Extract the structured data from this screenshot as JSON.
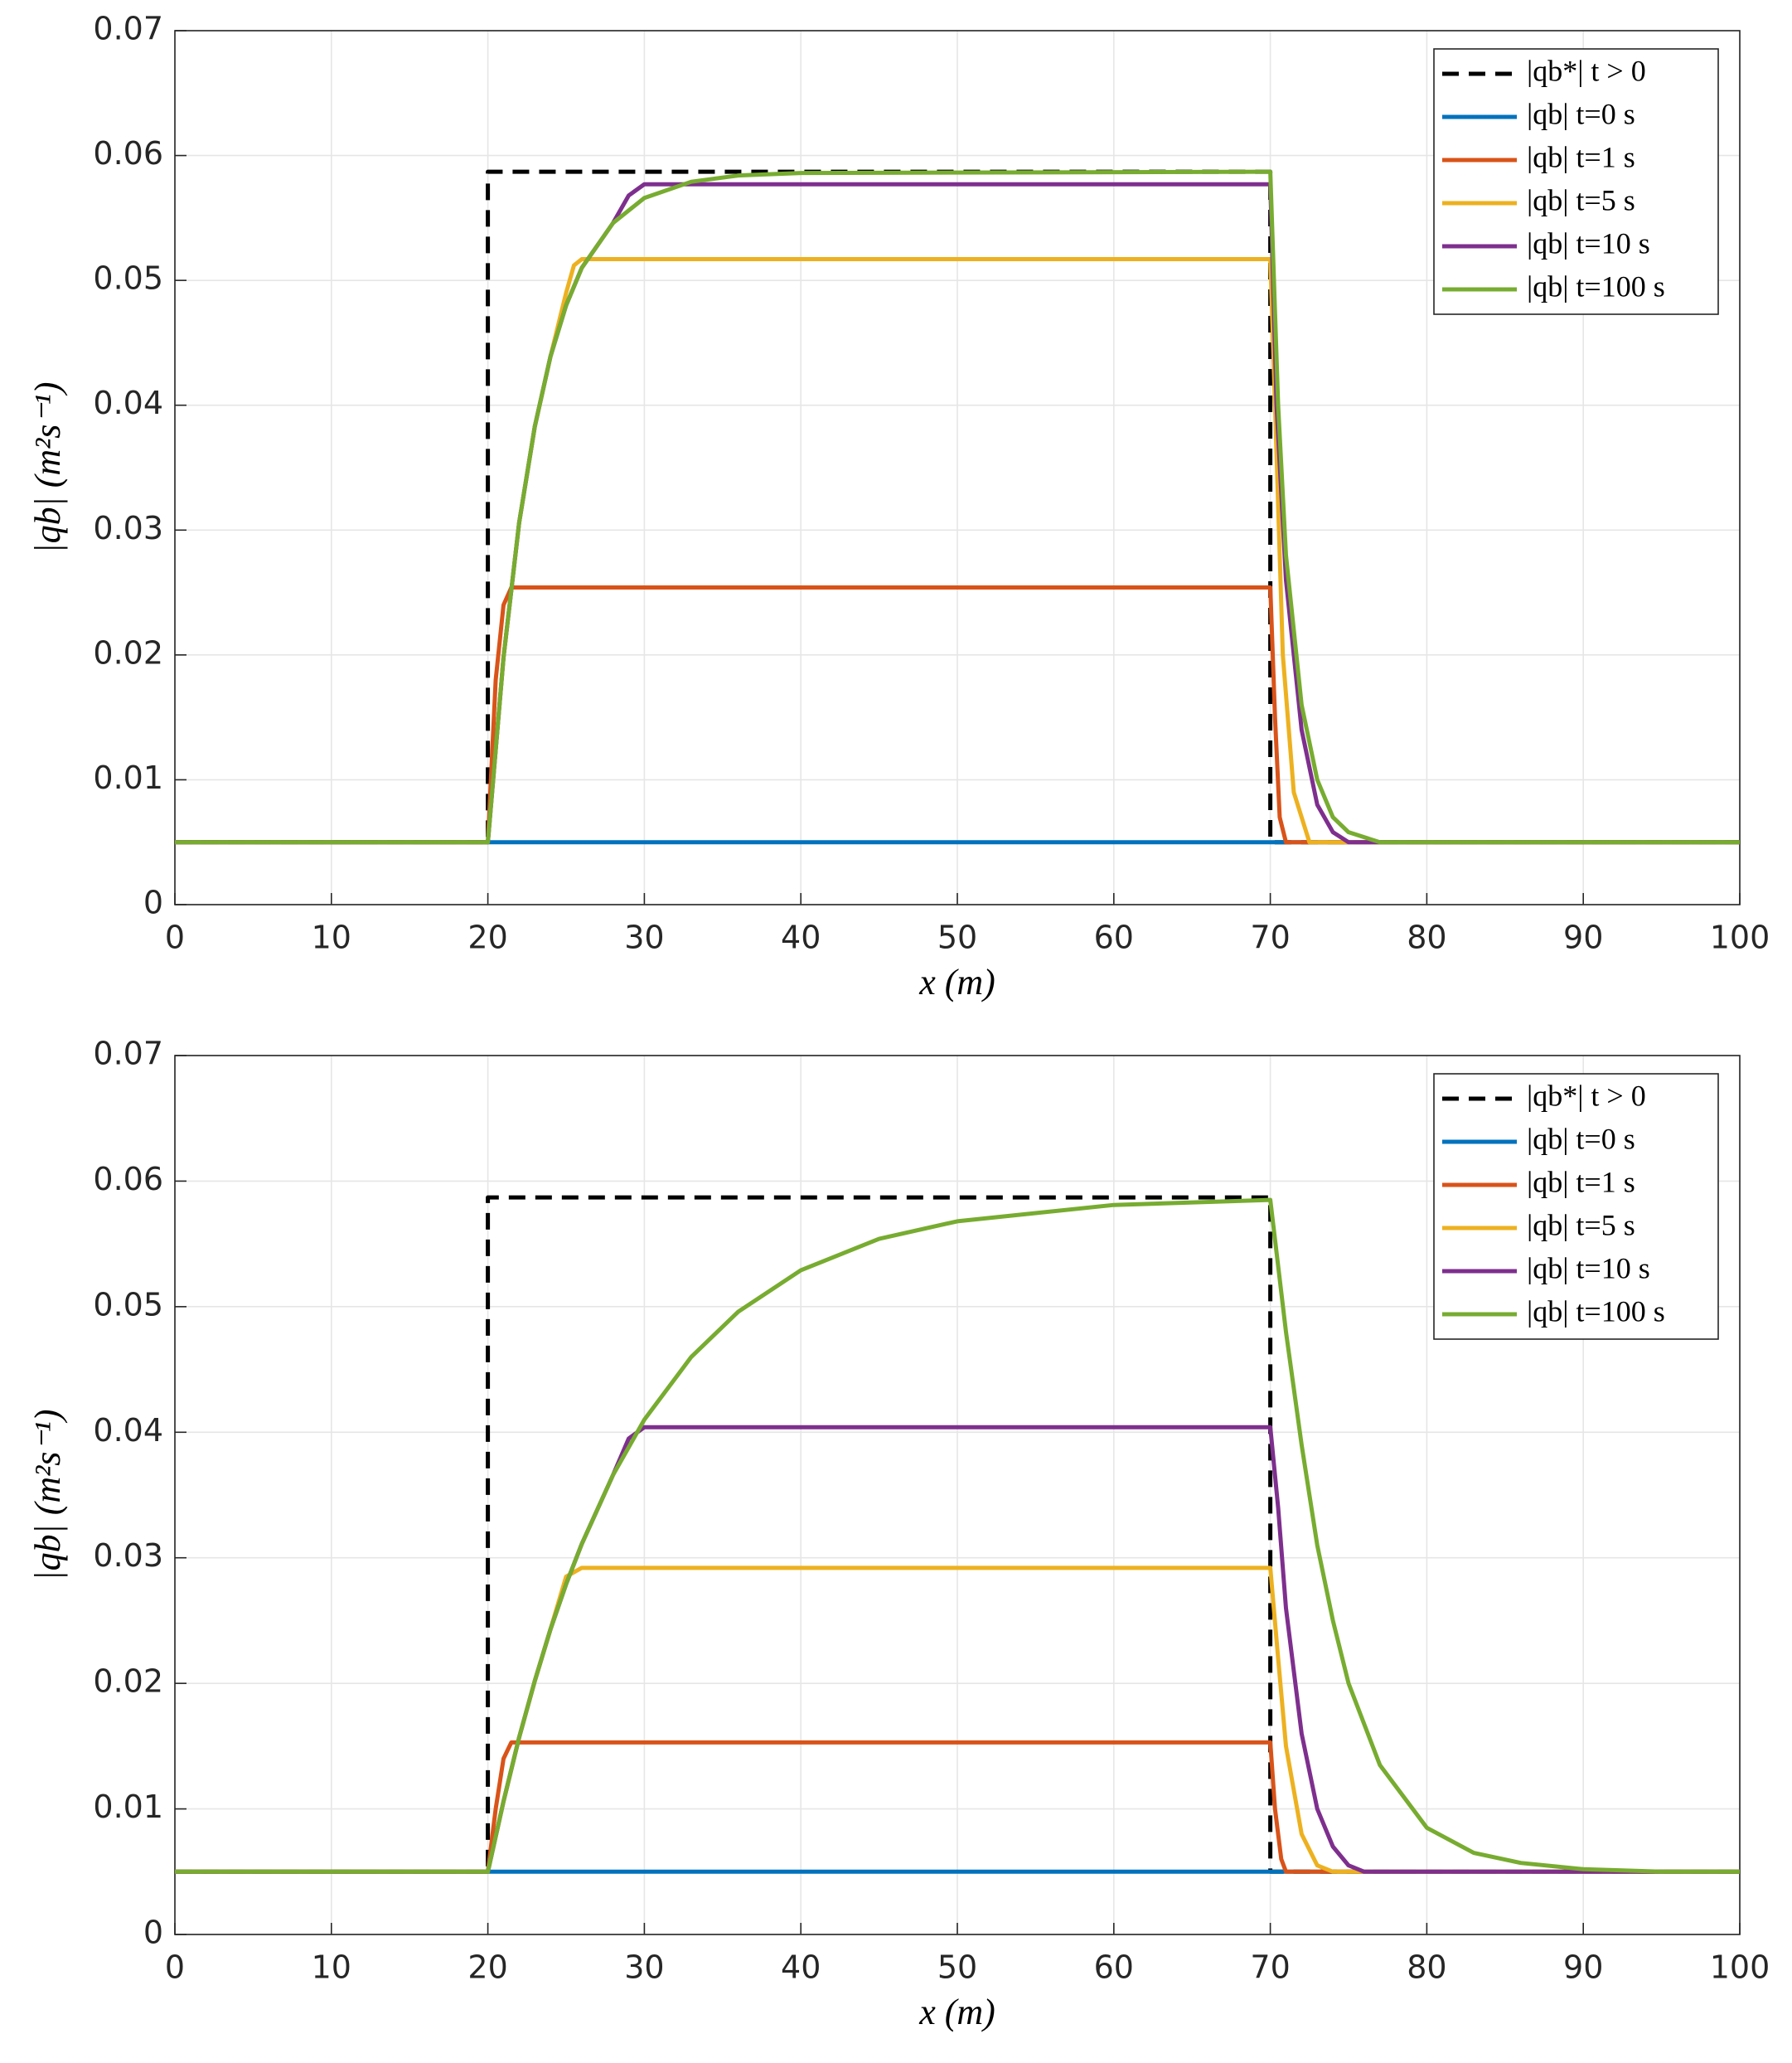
{
  "chart_data": [
    {
      "type": "line",
      "xlabel": "x (m)",
      "ylabel": "|qb| (m²s⁻¹)",
      "xlim": [
        0,
        100
      ],
      "xticks": [
        0,
        10,
        20,
        30,
        40,
        50,
        60,
        70,
        80,
        90,
        100
      ],
      "ylim": [
        0,
        0.07
      ],
      "yticks": [
        0,
        0.01,
        0.02,
        0.03,
        0.04,
        0.05,
        0.06,
        0.07
      ],
      "grid": true,
      "legend": "upper right",
      "series": [
        {
          "name": "|qb*| t > 0",
          "color": "#000000",
          "line_style": "dashed",
          "x": [
            0,
            20,
            20,
            70,
            70,
            100
          ],
          "values": [
            0.005,
            0.005,
            0.0587,
            0.0587,
            0.005,
            0.005
          ]
        },
        {
          "name": "|qb| t=0 s",
          "color": "#0072bd",
          "x": [
            0,
            100
          ],
          "values": [
            0.005,
            0.005
          ]
        },
        {
          "name": "|qb| t=1 s",
          "color": "#d95319",
          "x": [
            0,
            20,
            20.5,
            21,
            21.5,
            70,
            70.3,
            70.6,
            71,
            100
          ],
          "values": [
            0.005,
            0.005,
            0.018,
            0.024,
            0.0254,
            0.0254,
            0.015,
            0.007,
            0.005,
            0.005
          ]
        },
        {
          "name": "|qb| t=5 s",
          "color": "#edb120",
          "x": [
            0,
            20,
            21,
            22,
            23,
            24,
            25,
            25.5,
            26,
            70,
            70.3,
            70.8,
            71.5,
            72.5,
            100
          ],
          "values": [
            0.005,
            0.005,
            0.0198,
            0.0306,
            0.0383,
            0.0439,
            0.049,
            0.0512,
            0.0517,
            0.0517,
            0.04,
            0.02,
            0.009,
            0.005,
            0.005
          ]
        },
        {
          "name": "|qb| t=10 s",
          "color": "#7e2f8e",
          "x": [
            0,
            20,
            21,
            22,
            23,
            24,
            25,
            26,
            28,
            29,
            30,
            70,
            70.4,
            71,
            72,
            73,
            74,
            75,
            100
          ],
          "values": [
            0.005,
            0.005,
            0.0198,
            0.0306,
            0.0383,
            0.0439,
            0.048,
            0.051,
            0.0546,
            0.0568,
            0.0577,
            0.0577,
            0.04,
            0.026,
            0.014,
            0.008,
            0.0058,
            0.005,
            0.005
          ]
        },
        {
          "name": "|qb| t=100 s",
          "color": "#77ac30",
          "x": [
            0,
            20,
            21,
            22,
            23,
            24,
            25,
            26,
            28,
            30,
            33,
            36,
            40,
            70,
            70.5,
            71,
            72,
            73,
            74,
            75,
            77,
            100
          ],
          "values": [
            0.005,
            0.005,
            0.0198,
            0.0306,
            0.0383,
            0.0439,
            0.048,
            0.051,
            0.0546,
            0.0566,
            0.0579,
            0.0584,
            0.0586,
            0.0587,
            0.04,
            0.028,
            0.016,
            0.01,
            0.007,
            0.0058,
            0.005,
            0.005
          ]
        }
      ]
    },
    {
      "type": "line",
      "xlabel": "x (m)",
      "ylabel": "|qb| (m²s⁻¹)",
      "xlim": [
        0,
        100
      ],
      "xticks": [
        0,
        10,
        20,
        30,
        40,
        50,
        60,
        70,
        80,
        90,
        100
      ],
      "ylim": [
        0,
        0.07
      ],
      "yticks": [
        0,
        0.01,
        0.02,
        0.03,
        0.04,
        0.05,
        0.06,
        0.07
      ],
      "grid": true,
      "legend": "upper right",
      "series": [
        {
          "name": "|qb*| t > 0",
          "color": "#000000",
          "line_style": "dashed",
          "x": [
            0,
            20,
            20,
            70,
            70,
            100
          ],
          "values": [
            0.005,
            0.005,
            0.0587,
            0.0587,
            0.005,
            0.005
          ]
        },
        {
          "name": "|qb| t=0 s",
          "color": "#0072bd",
          "x": [
            0,
            100
          ],
          "values": [
            0.005,
            0.005
          ]
        },
        {
          "name": "|qb| t=1 s",
          "color": "#d95319",
          "x": [
            0,
            20,
            20.5,
            21,
            21.5,
            70,
            70.3,
            70.7,
            71,
            100
          ],
          "values": [
            0.005,
            0.005,
            0.01,
            0.014,
            0.0153,
            0.0153,
            0.01,
            0.006,
            0.005,
            0.005
          ]
        },
        {
          "name": "|qb| t=5 s",
          "color": "#edb120",
          "x": [
            0,
            20,
            21,
            22,
            23,
            24,
            25,
            26,
            70,
            70.5,
            71,
            72,
            73,
            74,
            100
          ],
          "values": [
            0.005,
            0.005,
            0.0106,
            0.0157,
            0.0202,
            0.0243,
            0.0285,
            0.0292,
            0.0292,
            0.022,
            0.015,
            0.008,
            0.0055,
            0.005,
            0.005
          ]
        },
        {
          "name": "|qb| t=10 s",
          "color": "#7e2f8e",
          "x": [
            0,
            20,
            21,
            22,
            23,
            24,
            25,
            26,
            28,
            29,
            30,
            70,
            70.5,
            71,
            72,
            73,
            74,
            75,
            76,
            100
          ],
          "values": [
            0.005,
            0.005,
            0.0106,
            0.0157,
            0.0202,
            0.0243,
            0.0279,
            0.0311,
            0.0366,
            0.0395,
            0.0404,
            0.0404,
            0.034,
            0.026,
            0.016,
            0.01,
            0.007,
            0.0055,
            0.005,
            0.005
          ]
        },
        {
          "name": "|qb| t=100 s",
          "color": "#77ac30",
          "x": [
            0,
            20,
            21,
            22,
            23,
            24,
            25,
            26,
            28,
            30,
            33,
            36,
            40,
            45,
            50,
            60,
            70,
            71,
            72,
            73,
            74,
            75,
            77,
            80,
            83,
            86,
            90,
            95,
            100
          ],
          "values": [
            0.005,
            0.005,
            0.0106,
            0.0157,
            0.0202,
            0.0243,
            0.0279,
            0.0311,
            0.0366,
            0.041,
            0.046,
            0.0496,
            0.0529,
            0.0554,
            0.0568,
            0.0581,
            0.0585,
            0.048,
            0.039,
            0.031,
            0.025,
            0.02,
            0.0135,
            0.0085,
            0.0065,
            0.0057,
            0.0052,
            0.005,
            0.005
          ]
        }
      ]
    }
  ]
}
